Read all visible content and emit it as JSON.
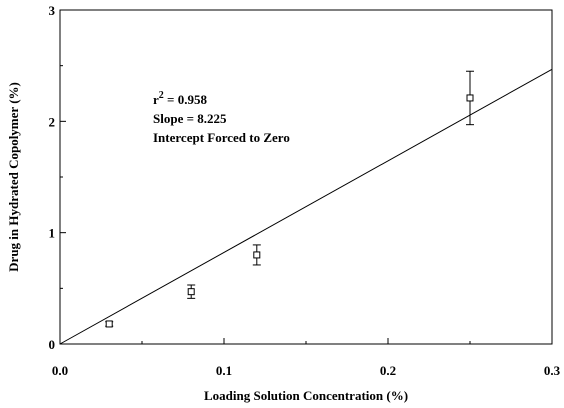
{
  "chart_data": {
    "type": "scatter",
    "xlabel": "Loading Solution  Concentration (%)",
    "ylabel": "Drug in Hydrated Copolymer (%)",
    "xlim": [
      0,
      0.3
    ],
    "ylim": [
      0,
      3
    ],
    "x_ticks": [
      "0.0",
      "0.1",
      "0.2",
      "0.3"
    ],
    "y_ticks": [
      "0",
      "1",
      "2",
      "3"
    ],
    "x_minor_step": 0.05,
    "y_minor_step": 0.5,
    "grid": false,
    "marker": "open-square",
    "points": [
      {
        "x": 0.03,
        "y": 0.18,
        "err": 0.02
      },
      {
        "x": 0.08,
        "y": 0.47,
        "err": 0.06
      },
      {
        "x": 0.12,
        "y": 0.8,
        "err": 0.09
      },
      {
        "x": 0.25,
        "y": 2.21,
        "err": 0.24
      }
    ],
    "fit_line": {
      "slope": 8.225,
      "intercept": 0
    },
    "annotations": {
      "r2_prefix": "r",
      "r2_sup": "2",
      "r2_value": " = 0.958",
      "slope": "Slope = 8.225",
      "intercept": "Intercept Forced to Zero"
    }
  }
}
